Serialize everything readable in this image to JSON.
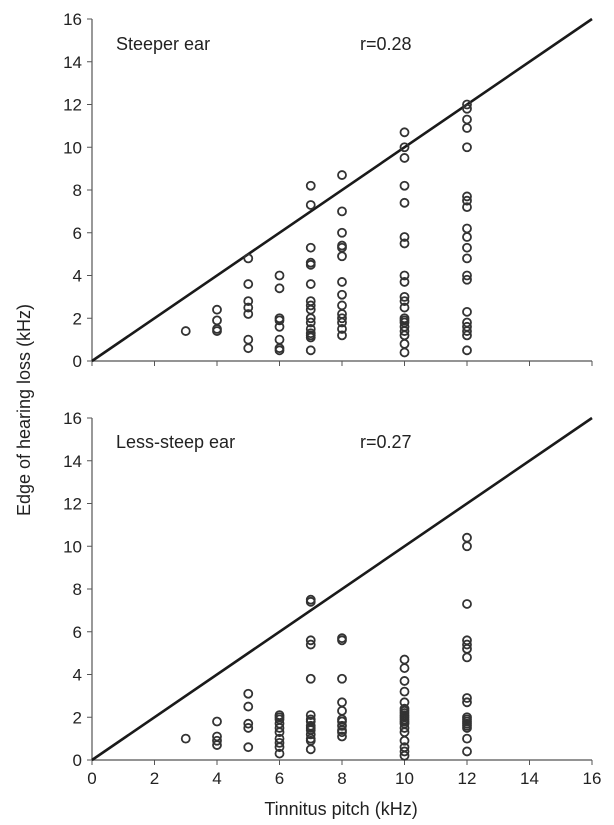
{
  "chart_data": [
    {
      "type": "scatter",
      "title": "Steeper ear",
      "annotation": "r=0.28",
      "xlabel": "",
      "ylabel": "Edge of hearing loss (kHz)",
      "xlim": [
        0,
        16
      ],
      "ylim": [
        0,
        16
      ],
      "x_ticks": [],
      "y_ticks": [
        "0",
        "2",
        "4",
        "6",
        "8",
        "10",
        "12",
        "14",
        "16"
      ],
      "grid": false,
      "reference_line": [
        [
          0,
          0
        ],
        [
          16,
          16
        ]
      ],
      "points": [
        [
          3,
          1.4
        ],
        [
          4,
          2.4
        ],
        [
          4,
          1.9
        ],
        [
          4,
          1.5
        ],
        [
          4,
          1.4
        ],
        [
          5,
          4.8
        ],
        [
          5,
          3.6
        ],
        [
          5,
          2.8
        ],
        [
          5,
          2.5
        ],
        [
          5,
          2.2
        ],
        [
          5,
          1.0
        ],
        [
          5,
          0.6
        ],
        [
          6,
          4.0
        ],
        [
          6,
          3.4
        ],
        [
          6,
          2.0
        ],
        [
          6,
          1.9
        ],
        [
          6,
          1.6
        ],
        [
          6,
          1.0
        ],
        [
          6,
          0.6
        ],
        [
          6,
          0.5
        ],
        [
          7,
          8.2
        ],
        [
          7,
          7.3
        ],
        [
          7,
          5.3
        ],
        [
          7,
          4.6
        ],
        [
          7,
          4.5
        ],
        [
          7,
          3.6
        ],
        [
          7,
          2.8
        ],
        [
          7,
          2.6
        ],
        [
          7,
          2.4
        ],
        [
          7,
          2.0
        ],
        [
          7,
          1.8
        ],
        [
          7,
          1.5
        ],
        [
          7,
          1.3
        ],
        [
          7,
          1.2
        ],
        [
          7,
          1.1
        ],
        [
          7,
          0.5
        ],
        [
          8,
          8.7
        ],
        [
          8,
          7.0
        ],
        [
          8,
          6.0
        ],
        [
          8,
          5.4
        ],
        [
          8,
          5.3
        ],
        [
          8,
          4.9
        ],
        [
          8,
          3.7
        ],
        [
          8,
          3.1
        ],
        [
          8,
          2.6
        ],
        [
          8,
          2.2
        ],
        [
          8,
          2.0
        ],
        [
          8,
          1.8
        ],
        [
          8,
          1.5
        ],
        [
          8,
          1.2
        ],
        [
          10,
          10.7
        ],
        [
          10,
          10.0
        ],
        [
          10,
          9.5
        ],
        [
          10,
          8.2
        ],
        [
          10,
          7.4
        ],
        [
          10,
          5.8
        ],
        [
          10,
          5.5
        ],
        [
          10,
          4.0
        ],
        [
          10,
          3.7
        ],
        [
          10,
          3.0
        ],
        [
          10,
          2.8
        ],
        [
          10,
          2.5
        ],
        [
          10,
          2.0
        ],
        [
          10,
          1.9
        ],
        [
          10,
          1.8
        ],
        [
          10,
          1.6
        ],
        [
          10,
          1.4
        ],
        [
          10,
          1.2
        ],
        [
          10,
          0.8
        ],
        [
          10,
          0.4
        ],
        [
          12,
          12.0
        ],
        [
          12,
          11.8
        ],
        [
          12,
          11.3
        ],
        [
          12,
          10.9
        ],
        [
          12,
          10.0
        ],
        [
          12,
          7.7
        ],
        [
          12,
          7.5
        ],
        [
          12,
          7.2
        ],
        [
          12,
          6.2
        ],
        [
          12,
          5.8
        ],
        [
          12,
          5.3
        ],
        [
          12,
          4.8
        ],
        [
          12,
          4.0
        ],
        [
          12,
          3.8
        ],
        [
          12,
          2.3
        ],
        [
          12,
          1.8
        ],
        [
          12,
          1.6
        ],
        [
          12,
          1.4
        ],
        [
          12,
          1.2
        ],
        [
          12,
          0.5
        ]
      ]
    },
    {
      "type": "scatter",
      "title": "Less-steep ear",
      "annotation": "r=0.27",
      "xlabel": "Tinnitus pitch (kHz)",
      "ylabel": "Edge of hearing loss (kHz)",
      "xlim": [
        0,
        16
      ],
      "ylim": [
        0,
        16
      ],
      "x_ticks": [
        "0",
        "2",
        "4",
        "6",
        "8",
        "10",
        "12",
        "14",
        "16"
      ],
      "y_ticks": [
        "0",
        "2",
        "4",
        "6",
        "8",
        "10",
        "12",
        "14",
        "16"
      ],
      "grid": false,
      "reference_line": [
        [
          0,
          0
        ],
        [
          16,
          16
        ]
      ],
      "points": [
        [
          3,
          1.0
        ],
        [
          4,
          1.8
        ],
        [
          4,
          1.1
        ],
        [
          4,
          0.9
        ],
        [
          4,
          0.7
        ],
        [
          5,
          3.1
        ],
        [
          5,
          2.5
        ],
        [
          5,
          1.7
        ],
        [
          5,
          1.5
        ],
        [
          5,
          0.6
        ],
        [
          6,
          2.1
        ],
        [
          6,
          2.0
        ],
        [
          6,
          1.9
        ],
        [
          6,
          1.7
        ],
        [
          6,
          1.5
        ],
        [
          6,
          1.3
        ],
        [
          6,
          1.0
        ],
        [
          6,
          0.8
        ],
        [
          6,
          0.6
        ],
        [
          6,
          0.3
        ],
        [
          7,
          7.5
        ],
        [
          7,
          7.4
        ],
        [
          7,
          5.6
        ],
        [
          7,
          5.4
        ],
        [
          7,
          3.8
        ],
        [
          7,
          2.1
        ],
        [
          7,
          1.9
        ],
        [
          7,
          1.8
        ],
        [
          7,
          1.6
        ],
        [
          7,
          1.5
        ],
        [
          7,
          1.4
        ],
        [
          7,
          1.2
        ],
        [
          7,
          1.0
        ],
        [
          7,
          0.9
        ],
        [
          7,
          0.5
        ],
        [
          8,
          5.7
        ],
        [
          8,
          5.6
        ],
        [
          8,
          3.8
        ],
        [
          8,
          2.7
        ],
        [
          8,
          2.3
        ],
        [
          8,
          1.9
        ],
        [
          8,
          1.8
        ],
        [
          8,
          1.6
        ],
        [
          8,
          1.4
        ],
        [
          8,
          1.3
        ],
        [
          8,
          1.1
        ],
        [
          10,
          4.7
        ],
        [
          10,
          4.3
        ],
        [
          10,
          3.7
        ],
        [
          10,
          3.2
        ],
        [
          10,
          2.7
        ],
        [
          10,
          2.4
        ],
        [
          10,
          2.3
        ],
        [
          10,
          2.2
        ],
        [
          10,
          2.1
        ],
        [
          10,
          2.0
        ],
        [
          10,
          1.9
        ],
        [
          10,
          1.8
        ],
        [
          10,
          1.7
        ],
        [
          10,
          1.5
        ],
        [
          10,
          1.3
        ],
        [
          10,
          0.9
        ],
        [
          10,
          0.6
        ],
        [
          10,
          0.4
        ],
        [
          10,
          0.2
        ],
        [
          12,
          10.4
        ],
        [
          12,
          10.0
        ],
        [
          12,
          7.3
        ],
        [
          12,
          5.6
        ],
        [
          12,
          5.4
        ],
        [
          12,
          5.2
        ],
        [
          12,
          4.8
        ],
        [
          12,
          2.9
        ],
        [
          12,
          2.7
        ],
        [
          12,
          2.0
        ],
        [
          12,
          1.9
        ],
        [
          12,
          1.8
        ],
        [
          12,
          1.7
        ],
        [
          12,
          1.6
        ],
        [
          12,
          1.5
        ],
        [
          12,
          1.0
        ],
        [
          12,
          0.4
        ]
      ]
    }
  ]
}
